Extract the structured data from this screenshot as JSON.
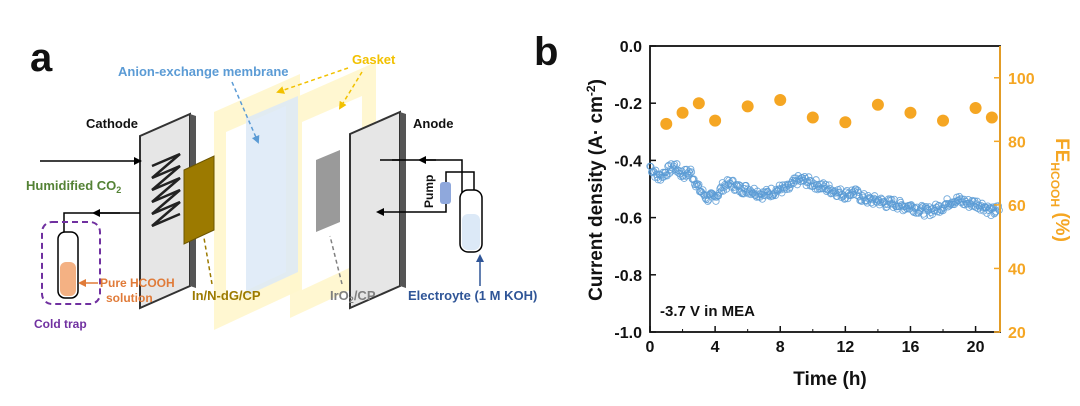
{
  "panel_a": {
    "label": "a",
    "labels": {
      "anion_membrane": "Anion-exchange membrane",
      "gasket": "Gasket",
      "cathode": "Cathode",
      "anode": "Anode",
      "humidified": "Humidified CO",
      "humidified_sub": "2",
      "pump": "Pump",
      "pure_hcooh_1": "Pure HCOOH",
      "pure_hcooh_2": "solution",
      "cold_trap": "Cold trap",
      "catalyst": "In/N-dG/CP",
      "iro2": "IrO",
      "iro2_sub": "2",
      "iro2_rest": "/CP",
      "electrolyte": "Electroyte (1 M KOH)"
    },
    "colors": {
      "membrane": "#5b9bd5",
      "gasket": "#f2c100",
      "humidified": "#548235",
      "hcooh": "#e07b39",
      "cold_trap": "#7030a0",
      "catalyst": "#9c7a00",
      "iro2": "#808080",
      "electrolyte": "#2f5597"
    }
  },
  "panel_b": {
    "label": "b"
  },
  "chart_data": {
    "type": "scatter",
    "annotation": "-3.7 V in MEA",
    "xlabel": "Time (h)",
    "ylabel": "Current density (A· cm",
    "ylabel_sup": "-2",
    "ylabel_end": ")",
    "y2label": "FE",
    "y2label_sub": "HCOOH",
    "y2label_end": " (%)",
    "xlim": [
      0,
      21.5
    ],
    "ylim": [
      -1.0,
      0.0
    ],
    "y2lim": [
      20,
      110
    ],
    "xticks": [
      0,
      4,
      8,
      12,
      16,
      20
    ],
    "xtick_labels": [
      "0",
      "4",
      "8",
      "12",
      "16",
      "20"
    ],
    "yticks": [
      -1.0,
      -0.8,
      -0.6,
      -0.4,
      -0.2,
      0.0
    ],
    "ytick_labels": [
      "-1.0",
      "-0.8",
      "-0.6",
      "-0.4",
      "-0.2",
      "0.0"
    ],
    "y2ticks": [
      20,
      40,
      60,
      80,
      100
    ],
    "y2tick_labels": [
      "20",
      "40",
      "60",
      "80",
      "100"
    ],
    "current_color": "#5b9bd5",
    "fe_color": "#f5a623",
    "series": [
      {
        "axis": "left",
        "x": [
          0,
          0.5,
          1,
          1.5,
          2,
          2.5,
          3,
          3.5,
          4,
          4.5,
          5,
          5.5,
          6,
          6.5,
          7,
          7.5,
          8,
          8.5,
          9,
          9.5,
          10,
          10.5,
          11,
          11.5,
          12,
          12.5,
          13,
          13.5,
          14,
          14.5,
          15,
          15.5,
          16,
          16.5,
          17,
          17.5,
          18,
          18.5,
          19,
          19.5,
          20,
          20.5,
          21,
          21.5
        ],
        "values": [
          -0.42,
          -0.46,
          -0.44,
          -0.42,
          -0.45,
          -0.44,
          -0.5,
          -0.53,
          -0.53,
          -0.49,
          -0.48,
          -0.5,
          -0.5,
          -0.51,
          -0.52,
          -0.51,
          -0.5,
          -0.5,
          -0.47,
          -0.47,
          -0.48,
          -0.49,
          -0.5,
          -0.51,
          -0.52,
          -0.51,
          -0.53,
          -0.54,
          -0.54,
          -0.55,
          -0.55,
          -0.56,
          -0.56,
          -0.57,
          -0.58,
          -0.57,
          -0.56,
          -0.54,
          -0.54,
          -0.55,
          -0.55,
          -0.56,
          -0.58,
          -0.57
        ]
      },
      {
        "axis": "right",
        "x": [
          1,
          2,
          3,
          4,
          6,
          8,
          10,
          12,
          14,
          16,
          18,
          20,
          21
        ],
        "values": [
          85.5,
          89,
          92,
          86.5,
          91,
          93,
          87.5,
          86,
          91.5,
          89,
          86.5,
          90.5,
          87.5
        ]
      }
    ]
  }
}
